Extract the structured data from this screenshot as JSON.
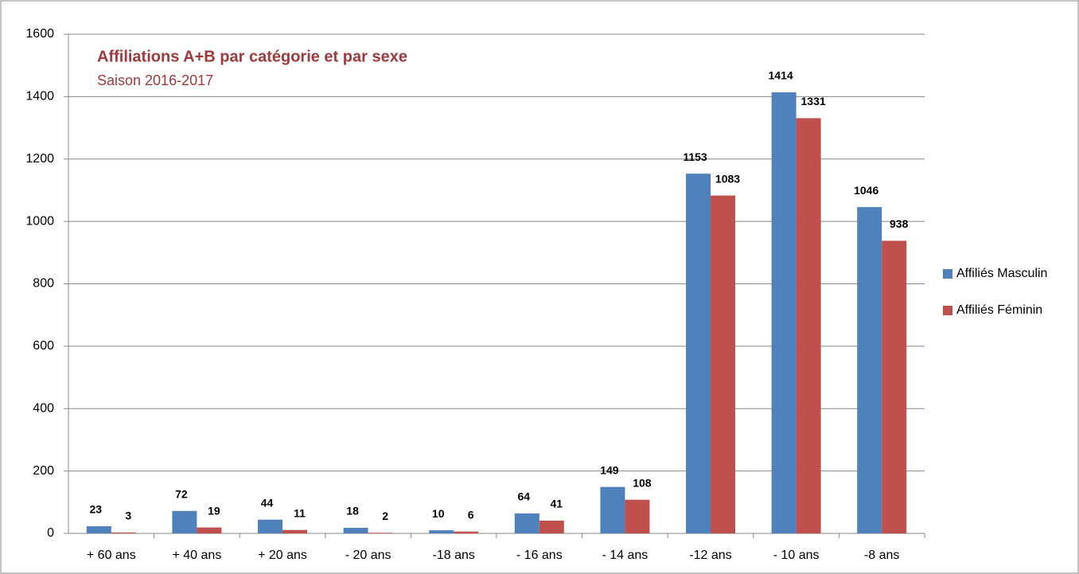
{
  "chart_data": {
    "type": "bar",
    "title": "Affiliations A+B par catégorie et par sexe",
    "subtitle": "Saison 2016-2017",
    "categories": [
      "+ 60 ans",
      "+ 40 ans",
      "+ 20 ans",
      "- 20 ans",
      "-18 ans",
      "- 16 ans",
      "- 14 ans",
      "-12 ans",
      "- 10 ans",
      "-8 ans"
    ],
    "series": [
      {
        "name": "Affiliés Masculin",
        "color": "#4f81bd",
        "values": [
          23,
          72,
          44,
          18,
          10,
          64,
          149,
          1153,
          1414,
          1046
        ]
      },
      {
        "name": "Affiliés Féminin",
        "color": "#c0504d",
        "values": [
          3,
          19,
          11,
          2,
          6,
          41,
          108,
          1083,
          1331,
          938
        ]
      }
    ],
    "ylim": [
      0,
      1600
    ],
    "yticks": [
      0,
      200,
      400,
      600,
      800,
      1000,
      1200,
      1400,
      1600
    ],
    "grid": true,
    "legend": "right"
  }
}
